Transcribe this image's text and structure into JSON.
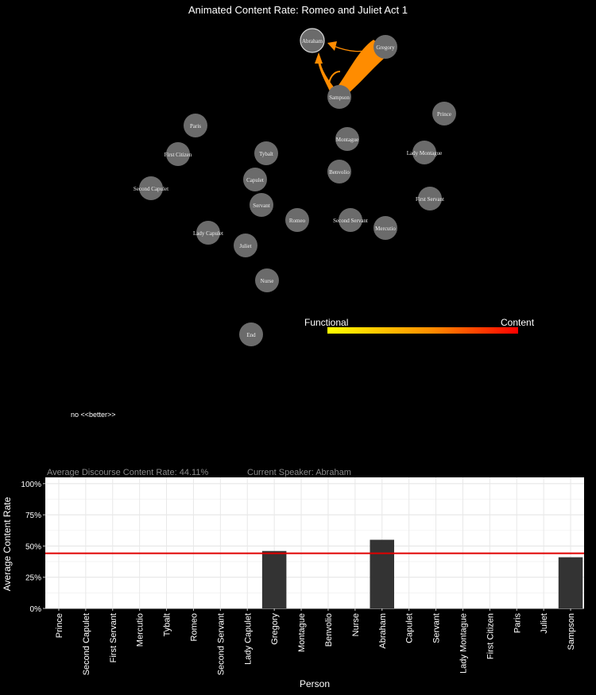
{
  "title": "Animated Content Rate: Romeo and Juliet Act 1",
  "legend": {
    "low_label": "Functional",
    "high_label": "Content",
    "low_color": "#ffff00",
    "high_color": "#ff0000"
  },
  "note": "no <<better>>",
  "stats": {
    "avg_label": "Average Discourse Content Rate:",
    "avg_value": "44.11%",
    "speaker_label": "Current Speaker:",
    "speaker_value": "Abraham"
  },
  "network": {
    "node_color": "#6b6b6b",
    "edge_color": "#ff8c00",
    "nodes": [
      {
        "name": "Abraham"
      },
      {
        "name": "Gregory"
      },
      {
        "name": "Sampson"
      },
      {
        "name": "Prince"
      },
      {
        "name": "Paris"
      },
      {
        "name": "Montague"
      },
      {
        "name": "First Citizen"
      },
      {
        "name": "Tybalt"
      },
      {
        "name": "Lady Montague"
      },
      {
        "name": "Benvolio"
      },
      {
        "name": "Capulet"
      },
      {
        "name": "Second Capulet"
      },
      {
        "name": "First Servant"
      },
      {
        "name": "Servant"
      },
      {
        "name": "Romeo"
      },
      {
        "name": "Second Servant"
      },
      {
        "name": "Mercutio"
      },
      {
        "name": "Lady Capulet"
      },
      {
        "name": "Juliet"
      },
      {
        "name": "Nurse"
      },
      {
        "name": "End"
      }
    ],
    "edges": [
      {
        "from": "Gregory",
        "to": "Sampson",
        "weight": "heavy"
      },
      {
        "from": "Sampson",
        "to": "Abraham",
        "weight": "medium"
      },
      {
        "from": "Gregory",
        "to": "Abraham",
        "weight": "light"
      }
    ]
  },
  "chart_data": {
    "type": "bar",
    "xlabel": "Person",
    "ylabel": "Average Content Rate",
    "ylim": [
      0,
      1.05
    ],
    "yticks": [
      0,
      0.25,
      0.5,
      0.75,
      1.0
    ],
    "ytick_labels": [
      "0%",
      "25%",
      "50%",
      "75%",
      "100%"
    ],
    "reference_line": 0.4411,
    "reference_color": "#e00000",
    "bar_color": "#333333",
    "grid": true,
    "categories": [
      "Prince",
      "Second Capulet",
      "First Servant",
      "Mercutio",
      "Tybalt",
      "Romeo",
      "Second Servant",
      "Lady Capulet",
      "Gregory",
      "Montague",
      "Benvolio",
      "Nurse",
      "Abraham",
      "Capulet",
      "Servant",
      "Lady Montague",
      "First Citizen",
      "Paris",
      "Juliet",
      "Sampson"
    ],
    "values": [
      null,
      null,
      null,
      null,
      null,
      null,
      null,
      null,
      0.46,
      null,
      null,
      null,
      0.55,
      null,
      null,
      null,
      null,
      null,
      null,
      0.41
    ]
  }
}
